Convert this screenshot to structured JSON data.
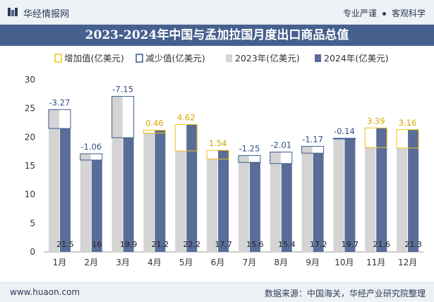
{
  "header": {
    "site_name": "华经情报网",
    "slogan_left": "专业严谨",
    "slogan_right": "客观科学"
  },
  "footer": {
    "url": "www.huaon.com",
    "source": "数据来源：中国海关，华经产业研究院整理"
  },
  "colors": {
    "bar_2023": "#d4d4d4",
    "bar_2024": "#5a6c98",
    "increase": "#f2c318",
    "decrease": "#3c5a8c",
    "title_bg": "#46608e"
  },
  "chart_data": {
    "type": "bar",
    "title": "2023-2024年中国与孟加拉国月度出口商品总值",
    "legend": [
      "增加值(亿美元)",
      "减少值(亿美元)",
      "2023年(亿美元)",
      "2024年(亿美元)"
    ],
    "legend_position": "top",
    "categories": [
      "1月",
      "2月",
      "3月",
      "4月",
      "5月",
      "6月",
      "7月",
      "8月",
      "9月",
      "10月",
      "11月",
      "12月"
    ],
    "series": [
      {
        "name": "2023年(亿美元)",
        "values": [
          24.8,
          17.1,
          27.1,
          20.7,
          17.6,
          16.2,
          16.8,
          17.4,
          18.4,
          19.8,
          18.2,
          18.1
        ]
      },
      {
        "name": "2024年(亿美元)",
        "values": [
          21.5,
          16.0,
          19.9,
          21.2,
          22.2,
          17.7,
          15.6,
          15.4,
          17.2,
          19.7,
          21.6,
          21.3
        ]
      }
    ],
    "diff_labels": [
      "-3.27",
      "-1.06",
      "-7.15",
      "0.46",
      "4.62",
      "1.54",
      "-1.25",
      "-2.01",
      "-1.17",
      "-0.14",
      "3.39",
      "3.16"
    ],
    "ylim": [
      0,
      30
    ],
    "yticks": [
      0,
      5,
      10,
      15,
      20,
      25,
      30
    ],
    "grid": false
  }
}
